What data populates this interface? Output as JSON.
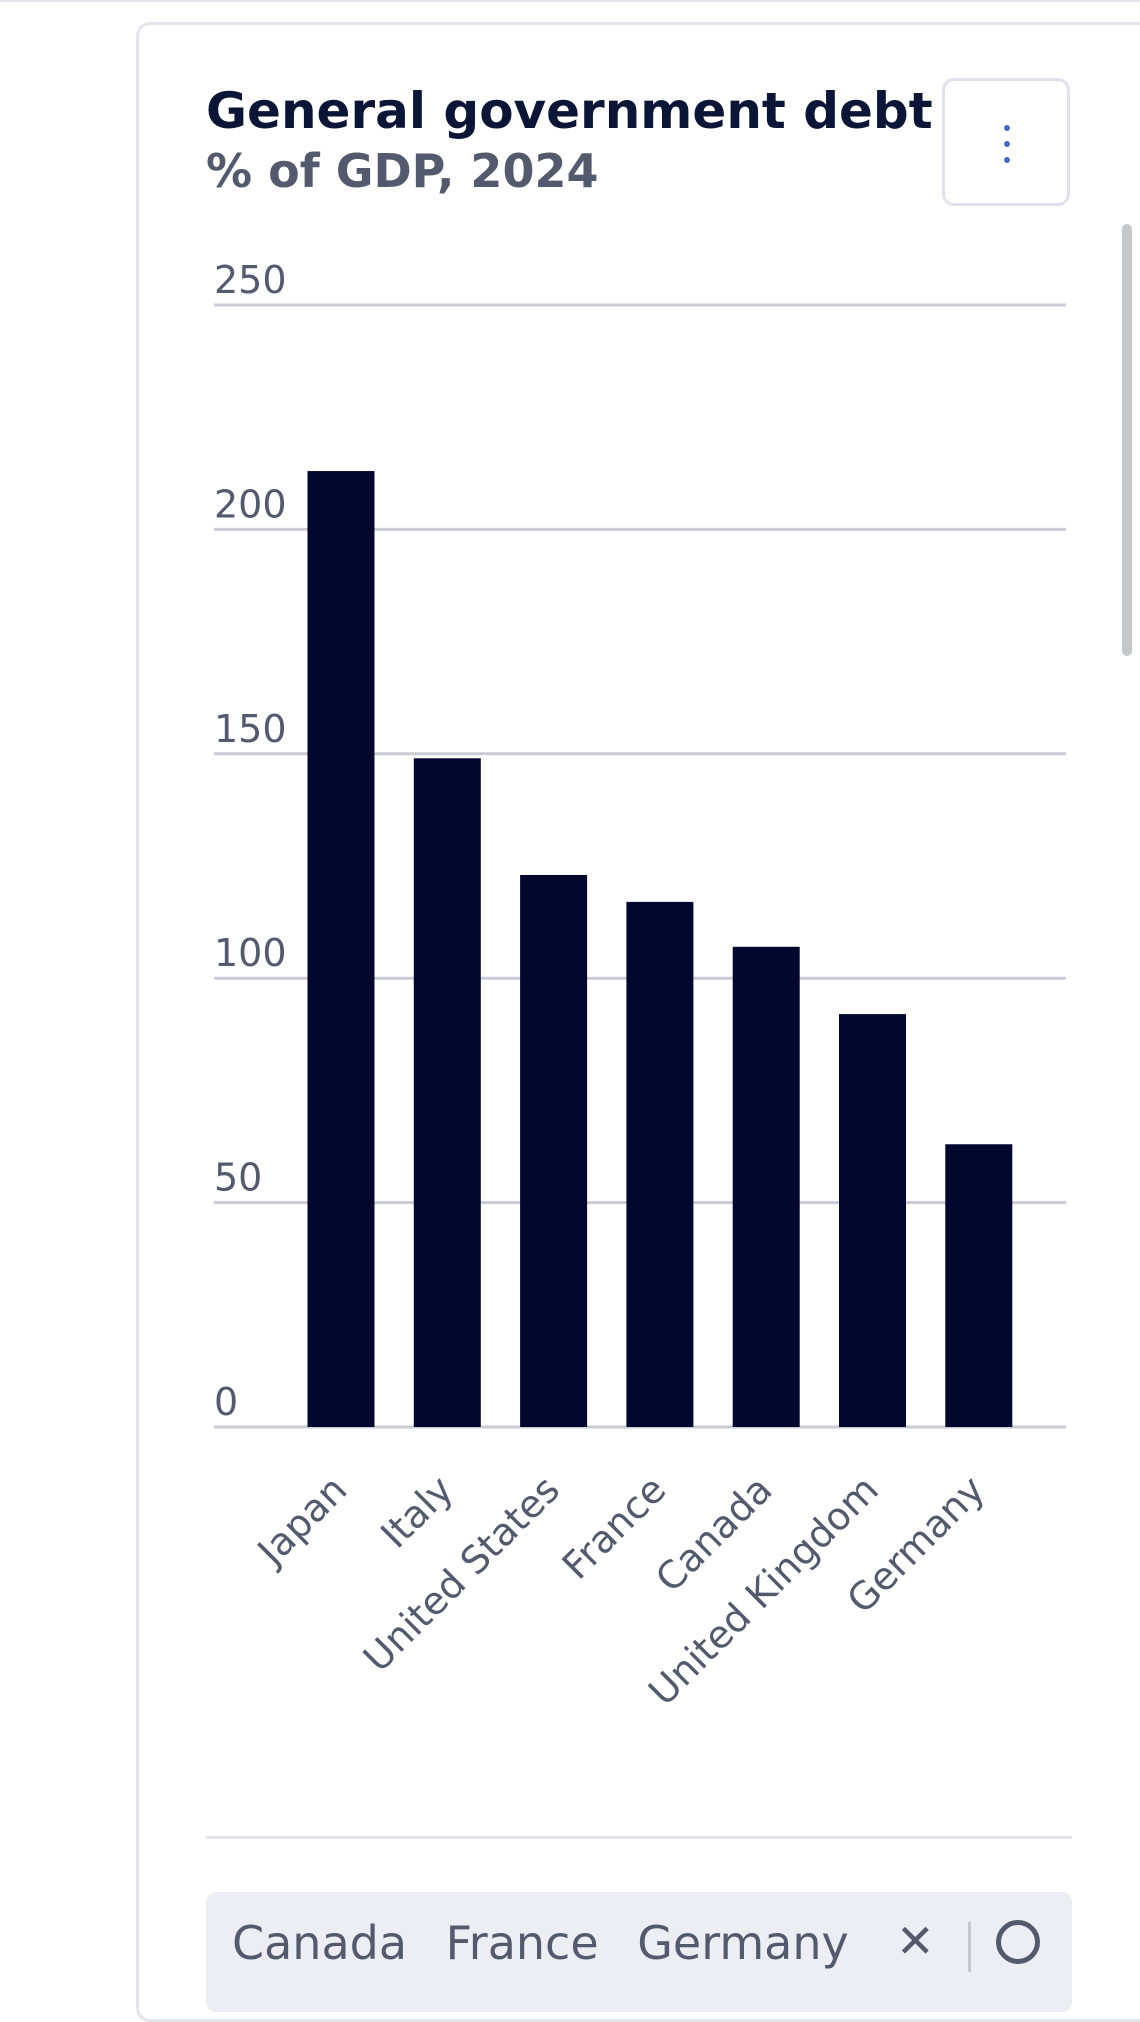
{
  "chart_data": {
    "type": "bar",
    "title": "General government debt",
    "subtitle": "% of GDP, 2024",
    "categories": [
      "Japan",
      "Italy",
      "United States",
      "France",
      "Canada",
      "United Kingdom",
      "Germany"
    ],
    "values": [
      213,
      149,
      123,
      117,
      107,
      92,
      63
    ],
    "ylim": [
      0,
      250
    ],
    "yticks": [
      0,
      50,
      100,
      150,
      200,
      250
    ],
    "xlabel": "",
    "ylabel": "",
    "grid": true,
    "bar_color": "#03072e",
    "grid_color": "#c9cbd6"
  },
  "selector": {
    "selected": [
      "Canada",
      "France",
      "Germany"
    ]
  }
}
